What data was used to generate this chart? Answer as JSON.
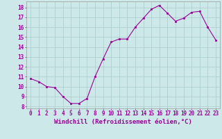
{
  "x": [
    0,
    1,
    2,
    3,
    4,
    5,
    6,
    7,
    8,
    9,
    10,
    11,
    12,
    13,
    14,
    15,
    16,
    17,
    18,
    19,
    20,
    21,
    22,
    23
  ],
  "y": [
    10.8,
    10.5,
    10.0,
    9.9,
    9.0,
    8.3,
    8.3,
    8.8,
    11.0,
    12.8,
    14.5,
    14.8,
    14.8,
    16.0,
    16.9,
    17.8,
    18.2,
    17.4,
    16.6,
    16.9,
    17.5,
    17.6,
    16.0,
    14.7
  ],
  "line_color": "#990099",
  "marker": "s",
  "marker_size": 2,
  "bg_color": "#cce8e8",
  "grid_color": "#aacccc",
  "xlabel": "Windchill (Refroidissement éolien,°C)",
  "xlabel_color": "#990099",
  "ylabel_ticks": [
    8,
    9,
    10,
    11,
    12,
    13,
    14,
    15,
    16,
    17,
    18
  ],
  "xtick_labels": [
    "0",
    "1",
    "2",
    "3",
    "4",
    "5",
    "6",
    "7",
    "8",
    "9",
    "10",
    "11",
    "12",
    "13",
    "14",
    "15",
    "16",
    "17",
    "18",
    "19",
    "20",
    "21",
    "22",
    "23"
  ],
  "ylim": [
    7.8,
    18.6
  ],
  "xlim": [
    -0.5,
    23.5
  ],
  "tick_color": "#990099",
  "axis_color": "#999999",
  "tick_fontsize": 5.5,
  "xlabel_fontsize": 6.5
}
